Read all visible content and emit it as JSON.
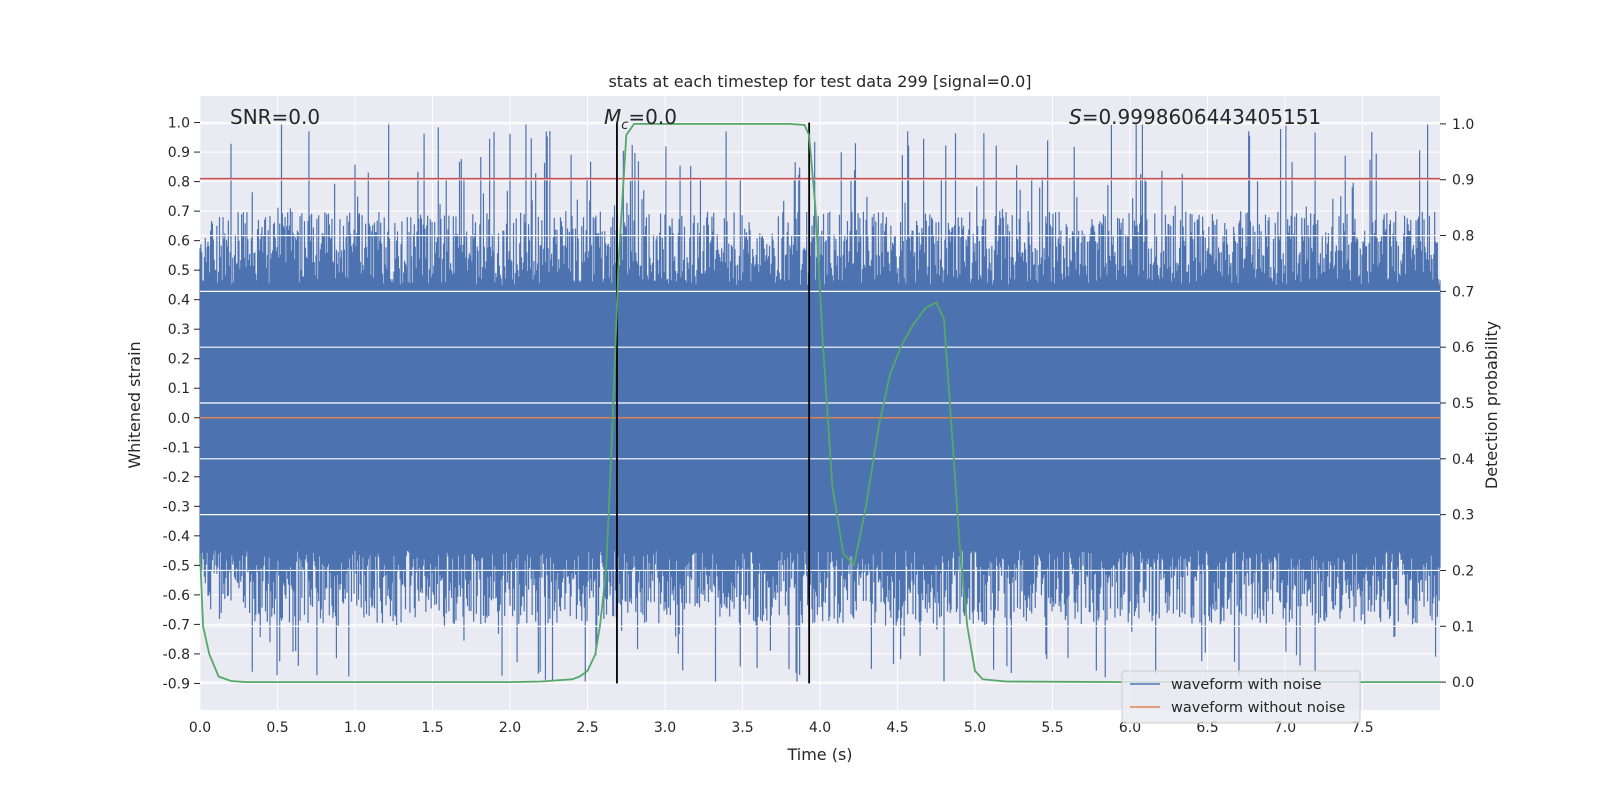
{
  "chart_data": {
    "type": "line",
    "title": "stats at each timestep for test data 299 [signal=0.0]",
    "xlabel": "Time (s)",
    "ylabel": "Whitened strain",
    "y2label": "Detection probability",
    "xlim": [
      0.0,
      8.0
    ],
    "ylim": [
      -0.99,
      1.09
    ],
    "y2lim": [
      -0.05,
      1.05
    ],
    "xticks": [
      "0.0",
      "0.5",
      "1.0",
      "1.5",
      "2.0",
      "2.5",
      "3.0",
      "3.5",
      "4.0",
      "4.5",
      "5.0",
      "5.5",
      "6.0",
      "6.5",
      "7.0",
      "7.5"
    ],
    "yticks": [
      "1.0",
      "0.9",
      "0.8",
      "0.7",
      "0.6",
      "0.5",
      "0.4",
      "0.3",
      "0.2",
      "0.1",
      "0.0",
      "-0.1",
      "-0.2",
      "-0.3",
      "-0.4",
      "-0.5",
      "-0.6",
      "-0.7",
      "-0.8",
      "-0.9"
    ],
    "y2ticks": [
      "1.0",
      "0.9",
      "0.8",
      "0.7",
      "0.6",
      "0.5",
      "0.4",
      "0.3",
      "0.2",
      "0.1",
      "0.0"
    ],
    "annotations": {
      "snr": "SNR=0.0",
      "mc_symbol": "M",
      "mc_sub": "c",
      "mc_value": "=0.0",
      "s_symbol": "S",
      "s_value": "=0.9998606443405151"
    },
    "legend": {
      "position": "lower-right",
      "entries": [
        {
          "label": "waveform with noise",
          "color": "#4c72b0"
        },
        {
          "label": "waveform without noise",
          "color": "#dd8452"
        }
      ]
    },
    "series": [
      {
        "name": "waveform with noise",
        "axis": "left",
        "color": "#4c72b0",
        "style": "dense noise trace",
        "t_start": 0.0,
        "t_end": 8.0,
        "core_band": [
          -0.45,
          0.45
        ],
        "extreme_range": [
          -0.9,
          1.0
        ]
      },
      {
        "name": "waveform without noise",
        "axis": "left",
        "color": "#dd8452",
        "x": [
          0.0,
          8.0
        ],
        "y": [
          0.0,
          0.0
        ]
      },
      {
        "name": "detection probability",
        "axis": "right",
        "color": "#55a868",
        "x": [
          0.0,
          0.02,
          0.06,
          0.12,
          0.2,
          0.3,
          0.5,
          1.0,
          1.5,
          2.0,
          2.2,
          2.3,
          2.4,
          2.45,
          2.5,
          2.55,
          2.58,
          2.62,
          2.66,
          2.7,
          2.75,
          2.8,
          2.9,
          3.0,
          3.5,
          3.8,
          3.9,
          3.93,
          3.97,
          4.02,
          4.08,
          4.15,
          4.22,
          4.3,
          4.38,
          4.45,
          4.52,
          4.6,
          4.68,
          4.75,
          4.8,
          4.85,
          4.9,
          4.95,
          5.0,
          5.05,
          5.2,
          6.0,
          7.0,
          8.0
        ],
        "y": [
          0.23,
          0.1,
          0.05,
          0.01,
          0.002,
          0.0,
          0.0,
          0.0,
          0.0,
          0.0,
          0.001,
          0.003,
          0.005,
          0.01,
          0.02,
          0.05,
          0.1,
          0.2,
          0.45,
          0.75,
          0.98,
          1.0,
          1.0,
          1.0,
          1.0,
          1.0,
          0.998,
          0.98,
          0.85,
          0.6,
          0.35,
          0.23,
          0.21,
          0.32,
          0.46,
          0.55,
          0.6,
          0.64,
          0.67,
          0.68,
          0.65,
          0.45,
          0.25,
          0.1,
          0.02,
          0.005,
          0.001,
          0.0,
          0.0,
          0.0
        ]
      },
      {
        "name": "threshold",
        "axis": "left",
        "color": "#c44e52",
        "x": [
          0.0,
          8.0
        ],
        "y": [
          0.81,
          0.81
        ]
      }
    ],
    "markers": {
      "vertical_lines_x": [
        2.69,
        3.93
      ],
      "vertical_lines_y_range": [
        -0.9,
        1.0
      ],
      "color": "#000000"
    }
  }
}
